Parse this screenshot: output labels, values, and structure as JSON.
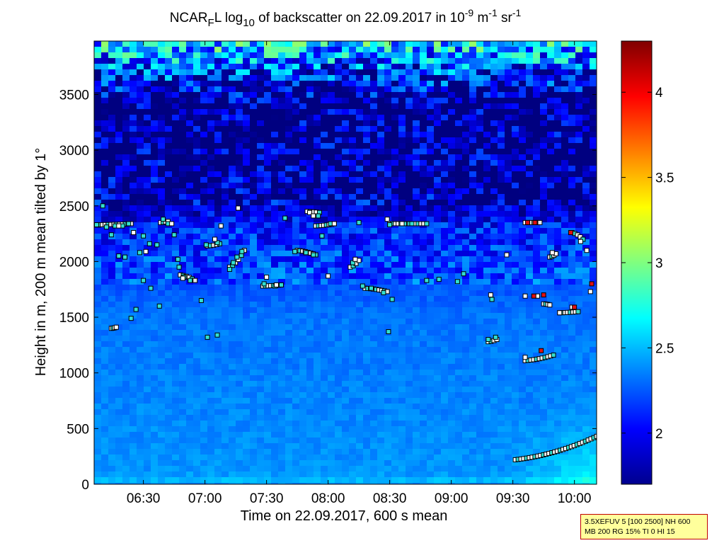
{
  "chart_data": {
    "type": "heatmap",
    "title": {
      "main_a": "NCAR",
      "main_sub": "F",
      "main_b": "L log",
      "log_sub": "10",
      "main_c": " of backscatter on 22.09.2017 in 10",
      "exp1": "-9",
      "unit_m": " m",
      "exp2": "-1",
      "unit_sr": " sr",
      "exp3": "-1"
    },
    "xlabel": "Time on 22.09.2017, 600 s mean",
    "ylabel": "Height in m, 200 m mean tilted by 1°",
    "x_ticks": [
      "06:30",
      "07:00",
      "07:30",
      "08:00",
      "08:30",
      "09:00",
      "09:30",
      "10:00"
    ],
    "x_tick_hours": [
      6.5,
      7.0,
      7.5,
      8.0,
      8.5,
      9.0,
      9.5,
      10.0
    ],
    "xlim_hours": [
      6.1,
      10.18
    ],
    "y_ticks": [
      "0",
      "500",
      "1000",
      "1500",
      "2000",
      "2500",
      "3000",
      "3500"
    ],
    "y_tick_values": [
      0,
      500,
      1000,
      1500,
      2000,
      2500,
      3000,
      3500
    ],
    "ylim": [
      0,
      3980
    ],
    "colorbar": {
      "colormap": "jet",
      "ticks": [
        "2",
        "2.5",
        "3",
        "3.5",
        "4"
      ],
      "tick_values": [
        2,
        2.5,
        3,
        3.5,
        4
      ],
      "clim": [
        1.7,
        4.3
      ]
    },
    "field_description_values": {
      "background_by_height": [
        {
          "height": 0,
          "value": 2.55
        },
        {
          "height": 100,
          "value": 2.4
        },
        {
          "height": 500,
          "value": 2.38
        },
        {
          "height": 1500,
          "value": 2.32
        },
        {
          "height": 2300,
          "value": 2.1
        },
        {
          "height": 2600,
          "value": 1.75
        },
        {
          "height": 3400,
          "value": 1.72
        },
        {
          "height": 3980,
          "value": 2.4
        }
      ]
    },
    "markers": {
      "cyan": [
        {
          "t": 6.12,
          "h": 2330
        },
        {
          "t": 6.17,
          "h": 2500
        },
        {
          "t": 6.2,
          "h": 2310
        },
        {
          "t": 6.24,
          "h": 2240
        },
        {
          "t": 6.27,
          "h": 2320
        },
        {
          "t": 6.3,
          "h": 2050
        },
        {
          "t": 6.33,
          "h": 2320
        },
        {
          "t": 6.35,
          "h": 2040
        },
        {
          "t": 6.38,
          "h": 2340
        },
        {
          "t": 6.4,
          "h": 1490
        },
        {
          "t": 6.44,
          "h": 1570
        },
        {
          "t": 6.47,
          "h": 2080
        },
        {
          "t": 6.5,
          "h": 2230
        },
        {
          "t": 6.5,
          "h": 1830
        },
        {
          "t": 6.55,
          "h": 2160
        },
        {
          "t": 6.56,
          "h": 1760
        },
        {
          "t": 6.61,
          "h": 2150
        },
        {
          "t": 6.63,
          "h": 1600
        },
        {
          "t": 6.66,
          "h": 2380
        },
        {
          "t": 6.7,
          "h": 2340
        },
        {
          "t": 6.75,
          "h": 2240
        },
        {
          "t": 6.78,
          "h": 2020
        },
        {
          "t": 6.79,
          "h": 1950
        },
        {
          "t": 6.83,
          "h": 1860
        },
        {
          "t": 6.88,
          "h": 1830
        },
        {
          "t": 6.97,
          "h": 1650
        },
        {
          "t": 7.01,
          "h": 2150
        },
        {
          "t": 7.1,
          "h": 2170
        },
        {
          "t": 7.2,
          "h": 1930
        },
        {
          "t": 7.23,
          "h": 1990
        },
        {
          "t": 7.26,
          "h": 2040
        },
        {
          "t": 7.3,
          "h": 2090
        },
        {
          "t": 7.1,
          "h": 1340
        },
        {
          "t": 7.02,
          "h": 1320
        },
        {
          "t": 7.48,
          "h": 1800
        },
        {
          "t": 7.57,
          "h": 1780
        },
        {
          "t": 7.65,
          "h": 2390
        },
        {
          "t": 7.73,
          "h": 2090
        },
        {
          "t": 7.82,
          "h": 2080
        },
        {
          "t": 7.88,
          "h": 2060
        },
        {
          "t": 7.92,
          "h": 2410
        },
        {
          "t": 7.95,
          "h": 2230
        },
        {
          "t": 8.02,
          "h": 2340
        },
        {
          "t": 8.2,
          "h": 1990
        },
        {
          "t": 8.25,
          "h": 2350
        },
        {
          "t": 8.28,
          "h": 1780
        },
        {
          "t": 8.35,
          "h": 1760
        },
        {
          "t": 8.45,
          "h": 1720
        },
        {
          "t": 8.5,
          "h": 2330
        },
        {
          "t": 8.52,
          "h": 1660
        },
        {
          "t": 8.49,
          "h": 1370
        },
        {
          "t": 8.62,
          "h": 2340
        },
        {
          "t": 8.68,
          "h": 2340
        },
        {
          "t": 8.8,
          "h": 1830
        },
        {
          "t": 8.9,
          "h": 1840
        },
        {
          "t": 9.05,
          "h": 1820
        },
        {
          "t": 9.1,
          "h": 1890
        },
        {
          "t": 9.33,
          "h": 1660
        },
        {
          "t": 9.36,
          "h": 1320
        },
        {
          "t": 9.3,
          "h": 1300
        }
      ],
      "white": [
        {
          "t": 6.3,
          "h": 2320
        },
        {
          "t": 6.42,
          "h": 2260
        },
        {
          "t": 6.52,
          "h": 2090
        },
        {
          "t": 6.73,
          "h": 2340
        },
        {
          "t": 6.82,
          "h": 1850
        },
        {
          "t": 7.08,
          "h": 2200
        },
        {
          "t": 7.13,
          "h": 2320
        },
        {
          "t": 7.27,
          "h": 2480
        },
        {
          "t": 7.5,
          "h": 1860
        },
        {
          "t": 7.58,
          "h": 1790
        },
        {
          "t": 7.85,
          "h": 2440
        },
        {
          "t": 7.88,
          "h": 2410
        },
        {
          "t": 8.0,
          "h": 1870
        },
        {
          "t": 8.05,
          "h": 2340
        },
        {
          "t": 8.22,
          "h": 2020
        },
        {
          "t": 8.48,
          "h": 2380
        },
        {
          "t": 8.6,
          "h": 2340
        },
        {
          "t": 9.32,
          "h": 1700
        },
        {
          "t": 9.45,
          "h": 2060
        },
        {
          "t": 9.6,
          "h": 1140
        },
        {
          "t": 9.7,
          "h": 1690
        },
        {
          "t": 9.82,
          "h": 2080
        },
        {
          "t": 9.88,
          "h": 1540
        },
        {
          "t": 9.98,
          "h": 1590
        },
        {
          "t": 10.05,
          "h": 2180
        },
        {
          "t": 10.1,
          "h": 2100
        },
        {
          "t": 10.13,
          "h": 1730
        },
        {
          "t": 9.6,
          "h": 1690
        }
      ],
      "red": [
        {
          "t": 9.62,
          "h": 2350
        },
        {
          "t": 9.68,
          "h": 2350
        },
        {
          "t": 9.67,
          "h": 1690
        },
        {
          "t": 9.75,
          "h": 1700
        },
        {
          "t": 9.73,
          "h": 1200
        },
        {
          "t": 9.97,
          "h": 2260
        },
        {
          "t": 10.0,
          "h": 1590
        },
        {
          "t": 10.14,
          "h": 1800
        }
      ]
    },
    "marker_strings": [
      {
        "t0": 6.12,
        "t1": 6.4,
        "h0": 2330,
        "h1": 2340
      },
      {
        "t0": 6.24,
        "t1": 6.28,
        "h0": 1400,
        "h1": 1410
      },
      {
        "t0": 6.64,
        "t1": 6.7,
        "h0": 2350,
        "h1": 2360
      },
      {
        "t0": 6.8,
        "t1": 6.92,
        "h0": 1880,
        "h1": 1830
      },
      {
        "t0": 7.02,
        "t1": 7.12,
        "h0": 2140,
        "h1": 2160
      },
      {
        "t0": 7.2,
        "t1": 7.32,
        "h0": 1950,
        "h1": 2100
      },
      {
        "t0": 7.47,
        "t1": 7.62,
        "h0": 1780,
        "h1": 1790
      },
      {
        "t0": 7.75,
        "t1": 7.9,
        "h0": 2100,
        "h1": 2060
      },
      {
        "t0": 7.83,
        "t1": 7.93,
        "h0": 2450,
        "h1": 2440
      },
      {
        "t0": 7.9,
        "t1": 8.05,
        "h0": 2320,
        "h1": 2340
      },
      {
        "t0": 8.3,
        "t1": 8.48,
        "h0": 1760,
        "h1": 1730
      },
      {
        "t0": 8.18,
        "t1": 8.25,
        "h0": 1950,
        "h1": 2010
      },
      {
        "t0": 8.5,
        "t1": 8.8,
        "h0": 2340,
        "h1": 2340
      },
      {
        "t0": 9.3,
        "t1": 9.37,
        "h0": 1280,
        "h1": 1300
      },
      {
        "t0": 9.6,
        "t1": 9.83,
        "h0": 1110,
        "h1": 1160
      },
      {
        "t0": 9.6,
        "t1": 9.72,
        "h0": 2350,
        "h1": 2350
      },
      {
        "t0": 9.75,
        "t1": 9.8,
        "h0": 1620,
        "h1": 1610
      },
      {
        "t0": 9.8,
        "t1": 9.85,
        "h0": 2040,
        "h1": 2070
      },
      {
        "t0": 9.88,
        "t1": 10.03,
        "h0": 1540,
        "h1": 1550
      },
      {
        "t0": 9.98,
        "t1": 10.07,
        "h0": 2260,
        "h1": 2200
      },
      {
        "t0": 9.52,
        "t1": 10.18,
        "h0": 220,
        "h1": 430
      }
    ]
  },
  "info_box": {
    "line1": "3.5XEFUV 5 [100 2500] NH 600",
    "line2": "MB 200 RG 15% TI 0 HI 15"
  }
}
